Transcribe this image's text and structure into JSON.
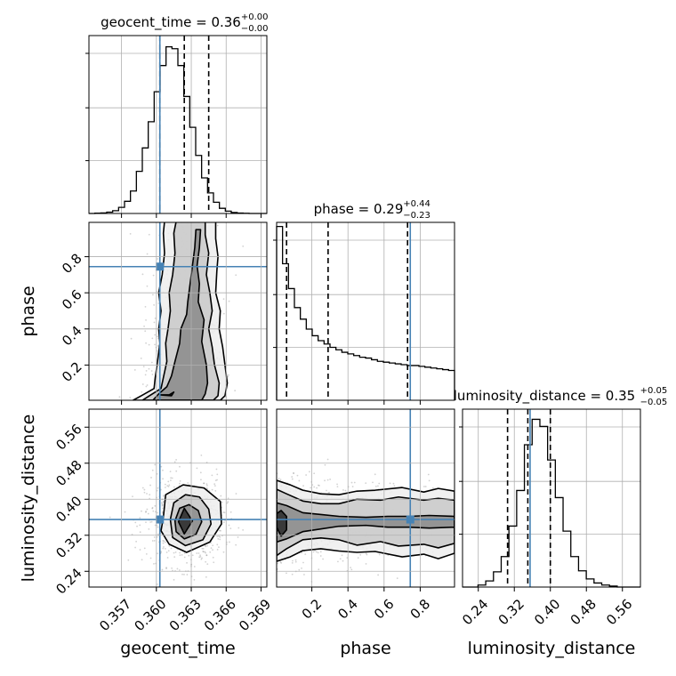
{
  "colors": {
    "truth": "#4682b4",
    "hist": "#000000",
    "grid": "#b0b0b0",
    "scatter": "#7f7f7f"
  },
  "chart_data": {
    "type": "corner",
    "parameters": [
      {
        "key": "geocent_time",
        "label": "geocent_time",
        "title_text": "geocent_time = 0.36",
        "title_plus": "+0.00",
        "title_minus": "−0.00",
        "range": [
          0.3542,
          0.3695
        ],
        "ticks": [
          0.357,
          0.36,
          0.363,
          0.366,
          0.369
        ],
        "tick_labels": [
          "0.357",
          "0.360",
          "0.363",
          "0.366",
          "0.369"
        ],
        "truth": 0.3603,
        "quantiles": [
          0.3603,
          0.3624,
          0.3645
        ],
        "hist_counts": [
          0,
          0.3,
          0.6,
          1.4,
          3.0,
          6.5,
          13,
          24,
          45,
          70,
          98,
          130,
          158,
          178,
          176,
          158,
          125,
          92,
          62,
          38,
          22,
          12,
          5.5,
          2.5,
          1.0,
          0.5,
          0.2,
          0,
          0,
          0
        ],
        "hist_ymax": 190
      },
      {
        "key": "phase",
        "label": "phase",
        "title_text": "phase = 0.29",
        "title_plus": "+0.44",
        "title_minus": "−0.23",
        "range": [
          0.005,
          0.99
        ],
        "ticks": [
          0.2,
          0.4,
          0.6,
          0.8
        ],
        "tick_labels": [
          "0.2",
          "0.4",
          "0.6",
          "0.8"
        ],
        "truth": 0.745,
        "quantiles": [
          0.06,
          0.29,
          0.73
        ],
        "hist_counts": [
          210,
          165,
          135,
          112,
          98,
          86,
          78,
          72,
          68,
          64,
          61,
          58,
          56,
          54,
          52,
          51,
          49,
          47,
          46,
          45,
          44,
          43,
          42,
          42,
          41,
          40,
          39,
          38,
          37,
          36
        ],
        "hist_ymax": 215
      },
      {
        "key": "luminosity_distance",
        "label": "luminosity_distance",
        "title_text": "luminosity_distance = 0.35",
        "title_plus": "+0.05",
        "title_minus": "−0.05",
        "range": [
          0.205,
          0.6
        ],
        "ticks": [
          0.24,
          0.32,
          0.4,
          0.48,
          0.56
        ],
        "tick_labels": [
          "0.24",
          "0.32",
          "0.40",
          "0.48",
          "0.56"
        ],
        "truth": 0.355,
        "quantiles": [
          0.305,
          0.35,
          0.4
        ],
        "hist_counts": [
          0,
          0,
          2,
          6,
          15,
          30,
          60,
          95,
          140,
          165,
          158,
          125,
          88,
          55,
          30,
          16,
          8,
          4,
          2,
          1,
          0,
          0,
          0
        ],
        "hist_ymax": 175
      }
    ],
    "pairs": [
      {
        "row": 1,
        "col": 0,
        "contours": [
          [
            [
              0.3603,
              0.035
            ],
            [
              0.3611,
              0.035
            ],
            [
              0.3615,
              0.05
            ],
            [
              0.3613,
              0.03
            ]
          ],
          [
            [
              0.3597,
              0.005
            ],
            [
              0.3602,
              0.04
            ],
            [
              0.3609,
              0.08
            ],
            [
              0.3613,
              0.14
            ],
            [
              0.3616,
              0.22
            ],
            [
              0.362,
              0.32
            ],
            [
              0.3621,
              0.4
            ],
            [
              0.3626,
              0.48
            ],
            [
              0.3627,
              0.55
            ],
            [
              0.3629,
              0.65
            ],
            [
              0.3631,
              0.75
            ],
            [
              0.3633,
              0.85
            ],
            [
              0.3634,
              0.95
            ],
            [
              0.3638,
              0.95
            ],
            [
              0.3637,
              0.85
            ],
            [
              0.3635,
              0.75
            ],
            [
              0.3637,
              0.65
            ],
            [
              0.3636,
              0.55
            ],
            [
              0.3641,
              0.45
            ],
            [
              0.3639,
              0.33
            ],
            [
              0.3643,
              0.2
            ],
            [
              0.3644,
              0.1
            ],
            [
              0.3642,
              0.04
            ],
            [
              0.3639,
              0.005
            ]
          ],
          [
            [
              0.3588,
              0.005
            ],
            [
              0.3594,
              0.03
            ],
            [
              0.3604,
              0.07
            ],
            [
              0.3606,
              0.13
            ],
            [
              0.3609,
              0.22
            ],
            [
              0.3608,
              0.32
            ],
            [
              0.361,
              0.4
            ],
            [
              0.3612,
              0.5
            ],
            [
              0.3611,
              0.6
            ],
            [
              0.3614,
              0.7
            ],
            [
              0.3616,
              0.82
            ],
            [
              0.3615,
              0.93
            ],
            [
              0.3617,
              0.995
            ],
            [
              0.3642,
              0.995
            ],
            [
              0.3642,
              0.92
            ],
            [
              0.3645,
              0.82
            ],
            [
              0.3643,
              0.7
            ],
            [
              0.3646,
              0.6
            ],
            [
              0.3648,
              0.5
            ],
            [
              0.3645,
              0.4
            ],
            [
              0.3648,
              0.3
            ],
            [
              0.365,
              0.2
            ],
            [
              0.3654,
              0.1
            ],
            [
              0.3653,
              0.03
            ],
            [
              0.3649,
              0.005
            ]
          ],
          [
            [
              0.358,
              0.005
            ],
            [
              0.3587,
              0.03
            ],
            [
              0.3598,
              0.07
            ],
            [
              0.3599,
              0.13
            ],
            [
              0.3601,
              0.22
            ],
            [
              0.3603,
              0.32
            ],
            [
              0.3602,
              0.4
            ],
            [
              0.3604,
              0.5
            ],
            [
              0.3602,
              0.6
            ],
            [
              0.3605,
              0.7
            ],
            [
              0.3607,
              0.82
            ],
            [
              0.3606,
              0.93
            ],
            [
              0.3607,
              0.995
            ],
            [
              0.3651,
              0.995
            ],
            [
              0.3651,
              0.9
            ],
            [
              0.3653,
              0.8
            ],
            [
              0.3652,
              0.72
            ],
            [
              0.3651,
              0.6
            ],
            [
              0.3655,
              0.5
            ],
            [
              0.3654,
              0.4
            ],
            [
              0.3657,
              0.3
            ],
            [
              0.3659,
              0.2
            ],
            [
              0.3661,
              0.1
            ],
            [
              0.3659,
              0.03
            ],
            [
              0.3655,
              0.005
            ]
          ]
        ]
      },
      {
        "row": 2,
        "col": 0,
        "contours": [
          [
            [
              0.3619,
              0.35
            ],
            [
              0.3624,
              0.38
            ],
            [
              0.3631,
              0.352
            ],
            [
              0.3624,
              0.323
            ]
          ],
          [
            [
              0.3616,
              0.352
            ],
            [
              0.362,
              0.38
            ],
            [
              0.3628,
              0.388
            ],
            [
              0.3636,
              0.375
            ],
            [
              0.3639,
              0.35
            ],
            [
              0.3634,
              0.322
            ],
            [
              0.3624,
              0.312
            ],
            [
              0.3617,
              0.328
            ]
          ],
          [
            [
              0.3612,
              0.355
            ],
            [
              0.3615,
              0.392
            ],
            [
              0.3625,
              0.41
            ],
            [
              0.3637,
              0.405
            ],
            [
              0.3645,
              0.378
            ],
            [
              0.3647,
              0.345
            ],
            [
              0.364,
              0.31
            ],
            [
              0.3625,
              0.297
            ],
            [
              0.3614,
              0.315
            ]
          ],
          [
            [
              0.3606,
              0.36
            ],
            [
              0.3608,
              0.41
            ],
            [
              0.3623,
              0.432
            ],
            [
              0.3641,
              0.425
            ],
            [
              0.3655,
              0.395
            ],
            [
              0.3656,
              0.345
            ],
            [
              0.3646,
              0.305
            ],
            [
              0.3626,
              0.282
            ],
            [
              0.3611,
              0.3
            ],
            [
              0.3604,
              0.33
            ]
          ]
        ]
      },
      {
        "row": 2,
        "col": 1,
        "contours": [
          [
            [
              0.005,
              0.338
            ],
            [
              0.03,
              0.318
            ],
            [
              0.06,
              0.332
            ],
            [
              0.06,
              0.362
            ],
            [
              0.03,
              0.375
            ],
            [
              0.005,
              0.368
            ]
          ],
          [
            [
              0.005,
              0.305
            ],
            [
              0.06,
              0.312
            ],
            [
              0.15,
              0.328
            ],
            [
              0.25,
              0.334
            ],
            [
              0.35,
              0.34
            ],
            [
              0.5,
              0.342
            ],
            [
              0.62,
              0.338
            ],
            [
              0.74,
              0.338
            ],
            [
              0.85,
              0.336
            ],
            [
              0.99,
              0.338
            ],
            [
              0.99,
              0.362
            ],
            [
              0.85,
              0.364
            ],
            [
              0.74,
              0.362
            ],
            [
              0.62,
              0.362
            ],
            [
              0.5,
              0.36
            ],
            [
              0.35,
              0.362
            ],
            [
              0.25,
              0.366
            ],
            [
              0.15,
              0.37
            ],
            [
              0.06,
              0.386
            ],
            [
              0.005,
              0.392
            ]
          ],
          [
            [
              0.005,
              0.275
            ],
            [
              0.06,
              0.29
            ],
            [
              0.15,
              0.31
            ],
            [
              0.25,
              0.314
            ],
            [
              0.35,
              0.31
            ],
            [
              0.45,
              0.298
            ],
            [
              0.58,
              0.306
            ],
            [
              0.68,
              0.296
            ],
            [
              0.82,
              0.3
            ],
            [
              0.9,
              0.292
            ],
            [
              0.99,
              0.302
            ],
            [
              0.99,
              0.398
            ],
            [
              0.9,
              0.402
            ],
            [
              0.82,
              0.398
            ],
            [
              0.68,
              0.405
            ],
            [
              0.58,
              0.398
            ],
            [
              0.45,
              0.4
            ],
            [
              0.35,
              0.39
            ],
            [
              0.25,
              0.39
            ],
            [
              0.15,
              0.396
            ],
            [
              0.06,
              0.412
            ],
            [
              0.005,
              0.422
            ]
          ],
          [
            [
              0.005,
              0.262
            ],
            [
              0.08,
              0.272
            ],
            [
              0.15,
              0.286
            ],
            [
              0.25,
              0.29
            ],
            [
              0.35,
              0.285
            ],
            [
              0.45,
              0.282
            ],
            [
              0.55,
              0.284
            ],
            [
              0.7,
              0.272
            ],
            [
              0.82,
              0.278
            ],
            [
              0.9,
              0.268
            ],
            [
              0.99,
              0.28
            ],
            [
              0.99,
              0.418
            ],
            [
              0.9,
              0.424
            ],
            [
              0.82,
              0.416
            ],
            [
              0.7,
              0.426
            ],
            [
              0.55,
              0.42
            ],
            [
              0.45,
              0.418
            ],
            [
              0.35,
              0.41
            ],
            [
              0.25,
              0.412
            ],
            [
              0.15,
              0.42
            ],
            [
              0.08,
              0.432
            ],
            [
              0.005,
              0.442
            ]
          ]
        ]
      }
    ]
  }
}
